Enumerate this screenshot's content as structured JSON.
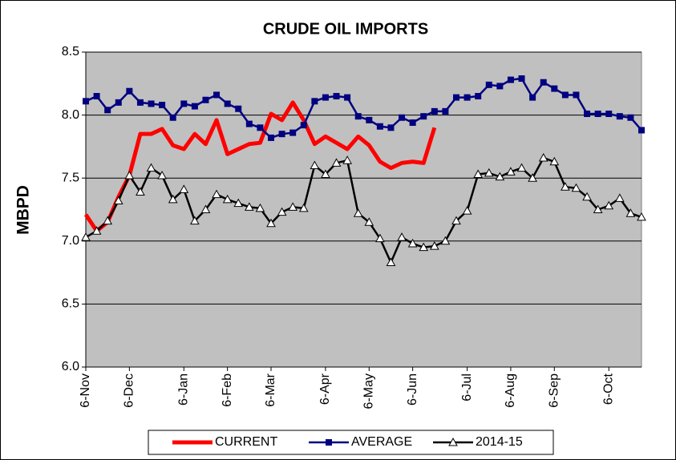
{
  "chart_data": {
    "type": "line",
    "title": "CRUDE OIL IMPORTS",
    "y_label": "MBPD",
    "categories": [
      "6-Nov",
      null,
      null,
      null,
      "6-Dec",
      null,
      null,
      null,
      null,
      "6-Jan",
      null,
      null,
      null,
      "6-Feb",
      null,
      null,
      null,
      "6-Mar",
      null,
      null,
      null,
      null,
      "6-Apr",
      null,
      null,
      null,
      "6-May",
      null,
      null,
      null,
      "6-Jun",
      null,
      null,
      null,
      null,
      "6-Jul",
      null,
      null,
      null,
      "6-Aug",
      null,
      null,
      null,
      "6-Sep",
      null,
      null,
      null,
      null,
      "6-Oct",
      null,
      null,
      null
    ],
    "series": [
      {
        "name": "CURRENT",
        "color": "#ff0000",
        "marker": "none",
        "values": [
          7.21,
          7.08,
          7.15,
          7.35,
          7.52,
          7.85,
          7.85,
          7.89,
          7.76,
          7.73,
          7.85,
          7.77,
          7.96,
          7.69,
          7.73,
          7.77,
          7.78,
          8.01,
          7.96,
          8.1,
          7.96,
          7.77,
          7.83,
          7.78,
          7.73,
          7.83,
          7.76,
          7.63,
          7.58,
          7.62,
          7.63,
          7.62,
          7.9,
          null,
          null,
          null,
          null,
          null,
          null,
          null,
          null,
          null,
          null,
          null,
          null,
          null,
          null,
          null,
          null,
          null,
          null,
          null
        ]
      },
      {
        "name": "AVERAGE",
        "color": "#000080",
        "marker": "square",
        "values": [
          8.11,
          8.15,
          8.04,
          8.1,
          8.19,
          8.1,
          8.09,
          8.08,
          7.98,
          8.09,
          8.07,
          8.12,
          8.16,
          8.09,
          8.05,
          7.93,
          7.9,
          7.82,
          7.85,
          7.86,
          7.92,
          8.11,
          8.14,
          8.15,
          8.14,
          7.99,
          7.96,
          7.91,
          7.9,
          7.98,
          7.94,
          7.99,
          8.03,
          8.03,
          8.14,
          8.14,
          8.15,
          8.24,
          8.23,
          8.28,
          8.29,
          8.14,
          8.26,
          8.21,
          8.16,
          8.16,
          8.01,
          8.01,
          8.01,
          7.99,
          7.98,
          7.88
        ]
      },
      {
        "name": "2014-15",
        "color": "#000000",
        "marker": "triangle",
        "values": [
          7.03,
          7.08,
          7.16,
          7.32,
          7.52,
          7.39,
          7.58,
          7.52,
          7.33,
          7.41,
          7.16,
          7.25,
          7.37,
          7.33,
          7.3,
          7.27,
          7.26,
          7.14,
          7.23,
          7.27,
          7.26,
          7.6,
          7.53,
          7.62,
          7.64,
          7.22,
          7.15,
          7.02,
          6.83,
          7.03,
          6.98,
          6.95,
          6.96,
          7.0,
          7.16,
          7.24,
          7.53,
          7.54,
          7.51,
          7.55,
          7.58,
          7.5,
          7.66,
          7.63,
          7.43,
          7.42,
          7.35,
          7.25,
          7.28,
          7.34,
          7.22,
          7.19
        ]
      }
    ],
    "ylim": [
      6.0,
      8.5
    ],
    "yticks": [
      {
        "value": 6.0,
        "label": "6.0"
      },
      6.5,
      {
        "value": 7.0,
        "label": "7.0"
      },
      7.5,
      {
        "value": 8.0,
        "label": "8.0"
      },
      8.5
    ],
    "grid": true,
    "legend": "bottom"
  }
}
